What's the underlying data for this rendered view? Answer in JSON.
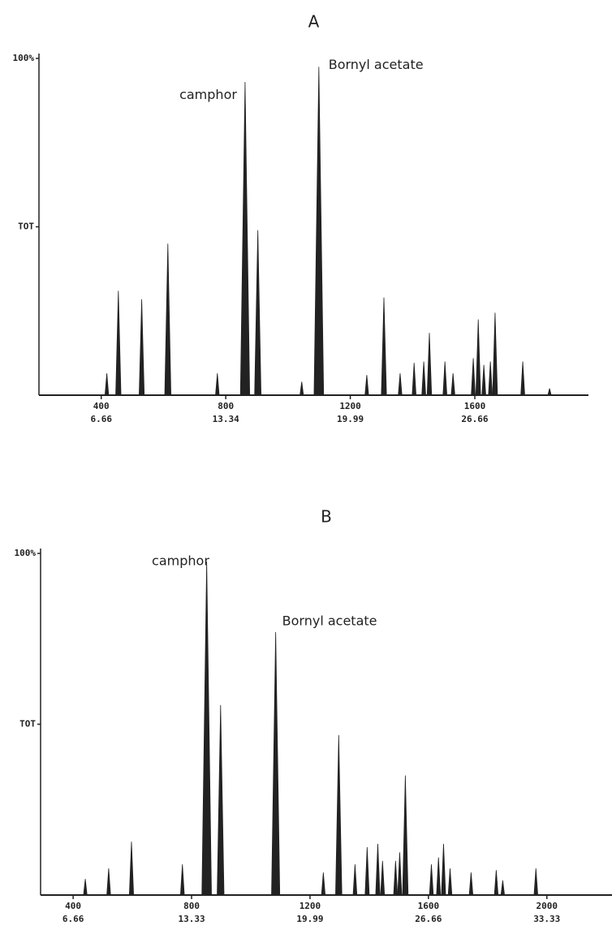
{
  "chart_data": [
    {
      "type": "chromatogram",
      "title": "A",
      "x": [
        418,
        455,
        530,
        614,
        773,
        862,
        903,
        1044,
        1099,
        1253,
        1308,
        1360,
        1405,
        1436,
        1454,
        1504,
        1530,
        1595,
        1611,
        1629,
        1650,
        1665,
        1754,
        1840
      ],
      "values": [
        6.5,
        31,
        28.5,
        45,
        6.5,
        93,
        49,
        4,
        97.5,
        6,
        29,
        6.5,
        9.6,
        10,
        18.5,
        10,
        6.5,
        11,
        22.5,
        9,
        10,
        24.5,
        10,
        2
      ],
      "color": "#222222",
      "xlim": [
        200,
        1965
      ],
      "ylim": [
        0,
        100
      ],
      "xticks": [
        400,
        800,
        1200,
        1600
      ],
      "xticks_time": [
        {
          "value": 400,
          "label": "6.66"
        },
        {
          "value": 800,
          "label": "13.34"
        },
        {
          "value": 1200,
          "label": "19.99"
        },
        {
          "value": 1600,
          "label": "26.66"
        }
      ],
      "yticks": [
        {
          "value": 100,
          "label": "100%"
        },
        {
          "value": 50,
          "label": "TOT"
        }
      ],
      "annotations": [
        {
          "text": "camphor",
          "x": 836,
          "y": 89
        },
        {
          "text": "Bornyl acetate",
          "x": 1130,
          "y": 98
        }
      ]
    },
    {
      "type": "chromatogram",
      "title": "B",
      "x": [
        441,
        520,
        597,
        769,
        851,
        898,
        1084,
        1245,
        1297,
        1352,
        1393,
        1429,
        1445,
        1489,
        1503,
        1522,
        1610,
        1634,
        1651,
        1673,
        1744,
        1829,
        1851,
        1963
      ],
      "values": [
        4.7,
        7.8,
        15.6,
        9,
        97.6,
        55.6,
        77,
        6.6,
        46.8,
        9,
        14,
        15,
        10,
        10,
        12.5,
        35,
        9,
        11,
        15,
        7.8,
        6.6,
        7.3,
        4.3,
        7.8
      ],
      "color": "#222222",
      "xlim": [
        290,
        2220
      ],
      "ylim": [
        0,
        100
      ],
      "xticks": [
        400,
        800,
        1200,
        1600,
        2000
      ],
      "xticks_time": [
        {
          "value": 400,
          "label": "6.66"
        },
        {
          "value": 800,
          "label": "13.33"
        },
        {
          "value": 1200,
          "label": "19.99"
        },
        {
          "value": 1600,
          "label": "26.66"
        },
        {
          "value": 2000,
          "label": "33.33"
        }
      ],
      "yticks": [
        {
          "value": 100,
          "label": "100%"
        },
        {
          "value": 50,
          "label": "TOT"
        }
      ],
      "annotations": [
        {
          "text": "camphor",
          "x": 860,
          "y": 97.6
        },
        {
          "text": "Bornyl acetate",
          "x": 1106,
          "y": 80
        }
      ]
    }
  ]
}
